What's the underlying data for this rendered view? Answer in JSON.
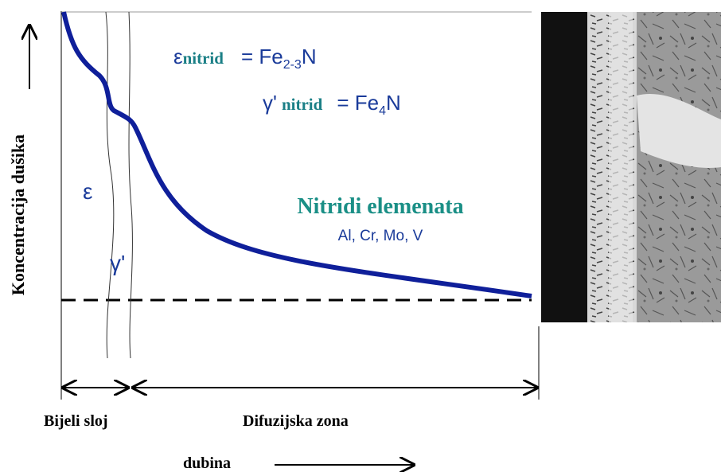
{
  "y_axis_label": "Koncentracija dušika",
  "formulas": [
    {
      "symbol": "ε",
      "label": "nitrid",
      "prefix": "= Fe",
      "sub": "2-3",
      "suffix": "N"
    },
    {
      "symbol": "γ'",
      "label": "nitrid",
      "prefix": "= Fe",
      "sub": "4",
      "suffix": "N"
    }
  ],
  "layers": {
    "epsilon": "ε",
    "gamma": "γ'"
  },
  "nitrides": {
    "title": "Nitridi elemenata",
    "elements": "Al, Cr, Mo, V"
  },
  "zones": {
    "white_layer": "Bijeli sloj",
    "diffusion_zone": "Difuzijska zona"
  },
  "x_axis_label": "dubina"
}
